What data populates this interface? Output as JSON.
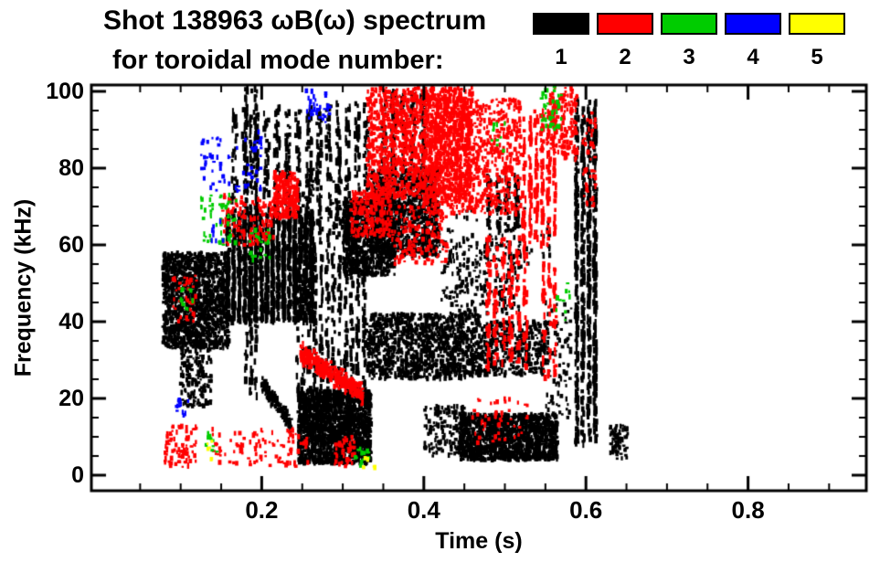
{
  "title": "Shot 138963 ωB(ω) spectrum",
  "subtitle": "for toroidal mode number:",
  "chart_data": {
    "type": "scatter",
    "title": "Shot 138963 ωB(ω) spectrum for toroidal mode number",
    "xlabel": "Time (s)",
    "ylabel": "Frequency (kHz)",
    "xlim": [
      0,
      0.95
    ],
    "ylim": [
      0,
      100
    ],
    "xticks": [
      0.2,
      0.4,
      0.6,
      0.8
    ],
    "yticks": [
      0,
      20,
      40,
      60,
      80,
      100
    ],
    "x_minor_step": 0.05,
    "y_minor_step": 5,
    "grid": false,
    "legend_position": "top-right",
    "legend": [
      {
        "label": "1",
        "color": "#000000"
      },
      {
        "label": "2",
        "color": "#ff0000"
      },
      {
        "label": "3",
        "color": "#00cc00"
      },
      {
        "label": "4",
        "color": "#0000ff"
      },
      {
        "label": "5",
        "color": "#ffff00"
      }
    ],
    "clusters": [
      {
        "m": 1,
        "style": "blob",
        "t": [
          0.078,
          0.16
        ],
        "f": [
          33,
          58
        ],
        "n": 1400
      },
      {
        "m": 1,
        "style": "blob",
        "t": [
          0.1,
          0.138
        ],
        "f": [
          18,
          33
        ],
        "n": 170
      },
      {
        "m": 1,
        "style": "col",
        "cols": 16,
        "t": [
          0.155,
          0.265
        ],
        "f": [
          40,
          68
        ],
        "n": 1500
      },
      {
        "m": 1,
        "style": "col",
        "cols": 8,
        "t": [
          0.16,
          0.265
        ],
        "f": [
          68,
          96
        ],
        "n": 320
      },
      {
        "m": 1,
        "style": "col",
        "cols": 3,
        "t": [
          0.178,
          0.196
        ],
        "f": [
          20,
          103
        ],
        "n": 240
      },
      {
        "m": 1,
        "style": "diag",
        "t": [
          0.2,
          0.237
        ],
        "f": [
          24,
          13
        ],
        "jit": 2,
        "n": 150
      },
      {
        "m": 1,
        "style": "blob",
        "t": [
          0.245,
          0.335
        ],
        "f": [
          3,
          22
        ],
        "n": 1800
      },
      {
        "m": 1,
        "style": "col",
        "cols": 12,
        "t": [
          0.24,
          0.33
        ],
        "f": [
          22,
          60
        ],
        "n": 450
      },
      {
        "m": 1,
        "style": "col",
        "cols": 6,
        "t": [
          0.265,
          0.335
        ],
        "f": [
          60,
          97
        ],
        "n": 280
      },
      {
        "m": 1,
        "style": "blob",
        "t": [
          0.3,
          0.365
        ],
        "f": [
          52,
          72
        ],
        "n": 850
      },
      {
        "m": 1,
        "style": "blob",
        "t": [
          0.335,
          0.42
        ],
        "f": [
          57,
          80
        ],
        "n": 1100
      },
      {
        "m": 1,
        "style": "col",
        "cols": 5,
        "t": [
          0.345,
          0.405
        ],
        "f": [
          80,
          100
        ],
        "n": 170
      },
      {
        "m": 1,
        "style": "blob",
        "t": [
          0.33,
          0.47
        ],
        "f": [
          25,
          42
        ],
        "n": 1150
      },
      {
        "m": 1,
        "style": "blob",
        "t": [
          0.47,
          0.555
        ],
        "f": [
          26,
          40
        ],
        "n": 420
      },
      {
        "m": 1,
        "style": "blob",
        "t": [
          0.42,
          0.52
        ],
        "f": [
          42,
          62
        ],
        "n": 230
      },
      {
        "m": 1,
        "style": "blob",
        "t": [
          0.4,
          0.45
        ],
        "f": [
          5,
          18
        ],
        "n": 150
      },
      {
        "m": 1,
        "style": "blob",
        "t": [
          0.445,
          0.565
        ],
        "f": [
          4,
          16
        ],
        "n": 1350
      },
      {
        "m": 1,
        "style": "col",
        "cols": 4,
        "t": [
          0.585,
          0.615
        ],
        "f": [
          8,
          98
        ],
        "n": 650
      },
      {
        "m": 1,
        "style": "blob",
        "t": [
          0.63,
          0.652
        ],
        "f": [
          4,
          13
        ],
        "n": 80
      },
      {
        "m": 1,
        "style": "blob",
        "t": [
          0.55,
          0.582
        ],
        "f": [
          15,
          45
        ],
        "n": 80
      },
      {
        "m": 1,
        "style": "blob",
        "t": [
          0.25,
          0.3
        ],
        "f": [
          62,
          80
        ],
        "n": 60
      },
      {
        "m": 1,
        "style": "blob",
        "t": [
          0.43,
          0.56
        ],
        "f": [
          55,
          70
        ],
        "n": 80
      },
      {
        "m": 1,
        "style": "col",
        "cols": 4,
        "t": [
          0.475,
          0.52
        ],
        "f": [
          63,
          78
        ],
        "n": 110
      },
      {
        "m": 2,
        "style": "blob",
        "t": [
          0.33,
          0.46
        ],
        "f": [
          72,
          101
        ],
        "n": 1500
      },
      {
        "m": 2,
        "style": "blob",
        "t": [
          0.4,
          0.52
        ],
        "f": [
          68,
          98
        ],
        "n": 850
      },
      {
        "m": 2,
        "style": "blob",
        "t": [
          0.31,
          0.36
        ],
        "f": [
          62,
          74
        ],
        "n": 230
      },
      {
        "m": 2,
        "style": "diag",
        "t": [
          0.248,
          0.325
        ],
        "f": [
          32,
          21
        ],
        "jit": 2.5,
        "n": 400
      },
      {
        "m": 2,
        "style": "col",
        "cols": 6,
        "t": [
          0.52,
          0.565
        ],
        "f": [
          60,
          95
        ],
        "n": 240
      },
      {
        "m": 2,
        "style": "col",
        "cols": 6,
        "t": [
          0.475,
          0.53
        ],
        "f": [
          28,
          62
        ],
        "n": 200
      },
      {
        "m": 2,
        "style": "blob",
        "t": [
          0.08,
          0.12
        ],
        "f": [
          2,
          13
        ],
        "n": 85
      },
      {
        "m": 2,
        "style": "blob",
        "t": [
          0.13,
          0.26
        ],
        "f": [
          2,
          12
        ],
        "n": 100
      },
      {
        "m": 2,
        "style": "blob",
        "t": [
          0.215,
          0.245
        ],
        "f": [
          67,
          79
        ],
        "n": 240
      },
      {
        "m": 2,
        "style": "blob",
        "t": [
          0.185,
          0.215
        ],
        "f": [
          60,
          72
        ],
        "n": 80
      },
      {
        "m": 2,
        "style": "blob",
        "t": [
          0.555,
          0.59
        ],
        "f": [
          82,
          101
        ],
        "n": 150
      },
      {
        "m": 2,
        "style": "blob",
        "t": [
          0.36,
          0.43
        ],
        "f": [
          55,
          70
        ],
        "n": 160
      },
      {
        "m": 2,
        "style": "blob",
        "t": [
          0.15,
          0.18
        ],
        "f": [
          60,
          73
        ],
        "n": 60
      },
      {
        "m": 2,
        "style": "blob",
        "t": [
          0.09,
          0.12
        ],
        "f": [
          40,
          52
        ],
        "n": 40
      },
      {
        "m": 2,
        "style": "blob",
        "t": [
          0.46,
          0.53
        ],
        "f": [
          8,
          20
        ],
        "n": 50
      },
      {
        "m": 2,
        "style": "blob",
        "t": [
          0.29,
          0.315
        ],
        "f": [
          2,
          10
        ],
        "n": 50
      },
      {
        "m": 2,
        "style": "col",
        "cols": 3,
        "t": [
          0.545,
          0.565
        ],
        "f": [
          25,
          55
        ],
        "n": 70
      },
      {
        "m": 2,
        "style": "blob",
        "t": [
          0.595,
          0.612
        ],
        "f": [
          70,
          95
        ],
        "n": 50
      },
      {
        "m": 3,
        "style": "blob",
        "t": [
          0.125,
          0.17
        ],
        "f": [
          60,
          73
        ],
        "n": 55
      },
      {
        "m": 3,
        "style": "blob",
        "t": [
          0.185,
          0.21
        ],
        "f": [
          56,
          64
        ],
        "n": 22
      },
      {
        "m": 3,
        "style": "blob",
        "t": [
          0.545,
          0.57
        ],
        "f": [
          90,
          102
        ],
        "n": 40
      },
      {
        "m": 3,
        "style": "blob",
        "t": [
          0.1,
          0.115
        ],
        "f": [
          43,
          49
        ],
        "n": 12
      },
      {
        "m": 3,
        "style": "blob",
        "t": [
          0.315,
          0.335
        ],
        "f": [
          2,
          7
        ],
        "n": 16
      },
      {
        "m": 3,
        "style": "blob",
        "t": [
          0.13,
          0.145
        ],
        "f": [
          6,
          11
        ],
        "n": 10
      },
      {
        "m": 3,
        "style": "blob",
        "t": [
          0.48,
          0.5
        ],
        "f": [
          84,
          92
        ],
        "n": 10
      },
      {
        "m": 3,
        "style": "blob",
        "t": [
          0.56,
          0.58
        ],
        "f": [
          40,
          50
        ],
        "n": 10
      },
      {
        "m": 4,
        "style": "blob",
        "t": [
          0.125,
          0.2
        ],
        "f": [
          74,
          88
        ],
        "n": 60
      },
      {
        "m": 4,
        "style": "blob",
        "t": [
          0.095,
          0.11
        ],
        "f": [
          14,
          20
        ],
        "n": 14
      },
      {
        "m": 4,
        "style": "blob",
        "t": [
          0.255,
          0.285
        ],
        "f": [
          92,
          101
        ],
        "n": 35
      },
      {
        "m": 4,
        "style": "blob",
        "t": [
          0.19,
          0.2
        ],
        "f": [
          85,
          90
        ],
        "n": 8
      },
      {
        "m": 4,
        "style": "blob",
        "t": [
          0.135,
          0.155
        ],
        "f": [
          60,
          68
        ],
        "n": 8
      },
      {
        "m": 5,
        "style": "blob",
        "t": [
          0.125,
          0.14
        ],
        "f": [
          4,
          9
        ],
        "n": 6
      },
      {
        "m": 5,
        "style": "blob",
        "t": [
          0.325,
          0.34
        ],
        "f": [
          2,
          6
        ],
        "n": 5
      }
    ]
  }
}
